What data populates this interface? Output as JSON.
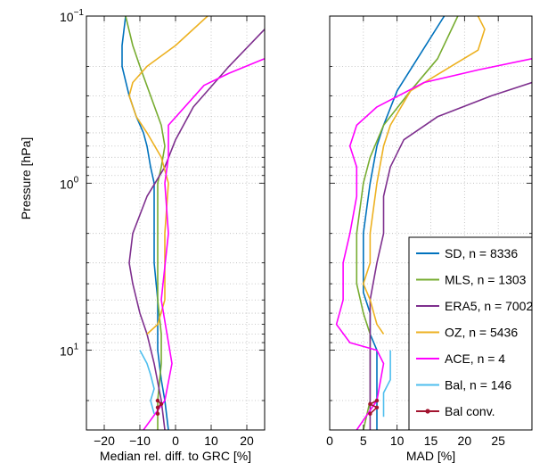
{
  "ylabel": "Pressure [hPa]",
  "y_ticks": [
    {
      "value": 0.1,
      "base": "10",
      "exp": "−1"
    },
    {
      "value": 1,
      "base": "10",
      "exp": "0"
    },
    {
      "value": 10,
      "base": "10",
      "exp": "1"
    }
  ],
  "legend": [
    {
      "label": "SD, n = 8336",
      "color": "#0072BD",
      "marker": false
    },
    {
      "label": "MLS, n = 1303",
      "color": "#77AC30",
      "marker": false
    },
    {
      "label": "ERA5, n = 7002",
      "color": "#7E2F8E",
      "marker": false
    },
    {
      "label": "OZ, n = 5436",
      "color": "#EDB120",
      "marker": false
    },
    {
      "label": "ACE, n = 4",
      "color": "#FF00FF",
      "marker": false
    },
    {
      "label": "Bal, n = 146",
      "color": "#4DBEEE",
      "marker": false
    },
    {
      "label": "Bal conv.",
      "color": "#A2142F",
      "marker": true
    }
  ],
  "chart_data": [
    {
      "type": "line",
      "xlabel": "Median rel. diff. to GRC [%]",
      "ylabel": "Pressure [hPa]",
      "y_scale": "log",
      "y_reversed": true,
      "xlim": [
        -25,
        25
      ],
      "ylim": [
        0.1,
        30
      ],
      "x_ticks": [
        "−20",
        "−10",
        "0",
        "10",
        "20"
      ],
      "x_tick_values": [
        -20,
        -10,
        0,
        10,
        20
      ],
      "grid": true,
      "series": [
        {
          "name": "SD, n = 8336",
          "color": "#0072BD",
          "points": [
            [
              -14,
              0.1
            ],
            [
              -15,
              0.15
            ],
            [
              -15,
              0.2
            ],
            [
              -13,
              0.3
            ],
            [
              -11,
              0.4
            ],
            [
              -9,
              0.5
            ],
            [
              -8,
              0.6
            ],
            [
              -7,
              0.8
            ],
            [
              -6,
              1
            ],
            [
              -6,
              1.5
            ],
            [
              -6,
              2
            ],
            [
              -6,
              3
            ],
            [
              -5,
              5
            ],
            [
              -5,
              7
            ],
            [
              -5,
              10
            ],
            [
              -4,
              15
            ],
            [
              -3,
              20
            ],
            [
              -2,
              30
            ]
          ]
        },
        {
          "name": "MLS, n = 1303",
          "color": "#77AC30",
          "points": [
            [
              -14,
              0.1
            ],
            [
              -12,
              0.15
            ],
            [
              -10,
              0.2
            ],
            [
              -7,
              0.3
            ],
            [
              -4,
              0.45
            ],
            [
              -3,
              0.6
            ],
            [
              -4,
              0.8
            ],
            [
              -5,
              1
            ],
            [
              -5,
              2
            ],
            [
              -5,
              3
            ],
            [
              -5,
              5
            ],
            [
              -4,
              8
            ],
            [
              -4,
              12
            ],
            [
              -5,
              20
            ],
            [
              -5,
              30
            ]
          ]
        },
        {
          "name": "ERA5, n = 7002",
          "color": "#7E2F8E",
          "points": [
            [
              25,
              0.12
            ],
            [
              15,
              0.2
            ],
            [
              5,
              0.35
            ],
            [
              0,
              0.55
            ],
            [
              -3,
              0.8
            ],
            [
              -8,
              1.2
            ],
            [
              -12,
              2
            ],
            [
              -13,
              3
            ],
            [
              -12,
              4
            ],
            [
              -10,
              6
            ],
            [
              -8,
              8
            ],
            [
              -6,
              12
            ],
            [
              -4,
              20
            ],
            [
              -3,
              30
            ]
          ]
        },
        {
          "name": "OZ, n = 5436",
          "color": "#EDB120",
          "points": [
            [
              9,
              0.1
            ],
            [
              0,
              0.15
            ],
            [
              -8,
              0.2
            ],
            [
              -12,
              0.25
            ],
            [
              -13,
              0.3
            ],
            [
              -11,
              0.4
            ],
            [
              -8,
              0.5
            ],
            [
              -4,
              0.7
            ],
            [
              -2,
              1
            ],
            [
              -3,
              2
            ],
            [
              -3,
              3
            ],
            [
              -3,
              5
            ],
            [
              -5,
              7
            ],
            [
              -8,
              8
            ]
          ]
        },
        {
          "name": "ACE, n = 4",
          "color": "#FF00FF",
          "points": [
            [
              25,
              0.18
            ],
            [
              15,
              0.22
            ],
            [
              8,
              0.26
            ],
            [
              -2,
              0.45
            ],
            [
              -2,
              0.7
            ],
            [
              -3,
              1
            ],
            [
              -2,
              2
            ],
            [
              -4,
              5
            ],
            [
              -1,
              12
            ],
            [
              -3,
              20
            ],
            [
              -9,
              30
            ]
          ]
        },
        {
          "name": "Bal, n = 146",
          "color": "#4DBEEE",
          "points": [
            [
              -10,
              10
            ],
            [
              -8,
              12
            ],
            [
              -7,
              14
            ],
            [
              -6,
              17
            ],
            [
              -7,
              20
            ],
            [
              -6,
              24
            ]
          ]
        },
        {
          "name": "Bal conv.",
          "color": "#A2142F",
          "points": [
            [
              -5,
              20
            ],
            [
              -4,
              21
            ],
            [
              -5,
              22
            ],
            [
              -5,
              24
            ]
          ]
        }
      ]
    },
    {
      "type": "line",
      "xlabel": "MAD [%]",
      "y_scale": "log",
      "y_reversed": true,
      "xlim": [
        0,
        30
      ],
      "ylim": [
        0.1,
        30
      ],
      "x_ticks": [
        "0",
        "5",
        "10",
        "15",
        "20",
        "25"
      ],
      "x_tick_values": [
        0,
        5,
        10,
        15,
        20,
        25
      ],
      "grid": true,
      "series": [
        {
          "name": "SD, n = 8336",
          "color": "#0072BD",
          "points": [
            [
              17,
              0.1
            ],
            [
              13,
              0.18
            ],
            [
              10,
              0.28
            ],
            [
              8,
              0.45
            ],
            [
              7,
              0.6
            ],
            [
              6,
              1
            ],
            [
              5,
              2
            ],
            [
              5,
              3
            ],
            [
              5,
              4.5
            ],
            [
              6,
              6
            ],
            [
              6,
              8
            ],
            [
              7,
              10
            ],
            [
              7,
              15
            ],
            [
              7,
              20
            ],
            [
              7,
              30
            ]
          ]
        },
        {
          "name": "MLS, n = 1303",
          "color": "#77AC30",
          "points": [
            [
              19,
              0.1
            ],
            [
              16,
              0.18
            ],
            [
              12,
              0.28
            ],
            [
              8,
              0.45
            ],
            [
              6,
              0.7
            ],
            [
              5,
              1
            ],
            [
              4,
              2
            ],
            [
              4,
              3
            ],
            [
              4,
              4
            ],
            [
              5,
              6
            ],
            [
              6,
              8
            ],
            [
              6,
              12
            ],
            [
              6,
              20
            ],
            [
              5,
              30
            ]
          ]
        },
        {
          "name": "ERA5, n = 7002",
          "color": "#7E2F8E",
          "points": [
            [
              30,
              0.25
            ],
            [
              24,
              0.3
            ],
            [
              16,
              0.4
            ],
            [
              11,
              0.55
            ],
            [
              9,
              0.8
            ],
            [
              8,
              1.2
            ],
            [
              8,
              2
            ],
            [
              7,
              3
            ],
            [
              6,
              5
            ],
            [
              6,
              8
            ],
            [
              6,
              12
            ],
            [
              6,
              20
            ],
            [
              6,
              30
            ]
          ]
        },
        {
          "name": "OZ, n = 5436",
          "color": "#EDB120",
          "points": [
            [
              22,
              0.1
            ],
            [
              23,
              0.12
            ],
            [
              22,
              0.16
            ],
            [
              18,
              0.2
            ],
            [
              12,
              0.28
            ],
            [
              9,
              0.45
            ],
            [
              8,
              0.6
            ],
            [
              7,
              1
            ],
            [
              6,
              2
            ],
            [
              6,
              3
            ],
            [
              5,
              4
            ],
            [
              6,
              5
            ],
            [
              7,
              7
            ],
            [
              8,
              8
            ]
          ]
        },
        {
          "name": "ACE, n = 4",
          "color": "#FF00FF",
          "points": [
            [
              30,
              0.18
            ],
            [
              22,
              0.21
            ],
            [
              14,
              0.25
            ],
            [
              7,
              0.35
            ],
            [
              4,
              0.45
            ],
            [
              3,
              0.6
            ],
            [
              4,
              0.8
            ],
            [
              4,
              1.2
            ],
            [
              3,
              2
            ],
            [
              2,
              3
            ],
            [
              2,
              5
            ],
            [
              1,
              7
            ],
            [
              3,
              9
            ],
            [
              7,
              10
            ],
            [
              8,
              12
            ],
            [
              7,
              20
            ],
            [
              4,
              30
            ]
          ]
        },
        {
          "name": "Bal, n = 146",
          "color": "#4DBEEE",
          "points": [
            [
              9,
              10
            ],
            [
              9,
              12
            ],
            [
              9,
              15
            ],
            [
              8,
              18
            ],
            [
              8,
              22
            ],
            [
              8,
              25
            ]
          ]
        },
        {
          "name": "Bal conv.",
          "color": "#A2142F",
          "points": [
            [
              7,
              20
            ],
            [
              6,
              21
            ],
            [
              7,
              22
            ],
            [
              6,
              24
            ]
          ]
        }
      ]
    }
  ]
}
